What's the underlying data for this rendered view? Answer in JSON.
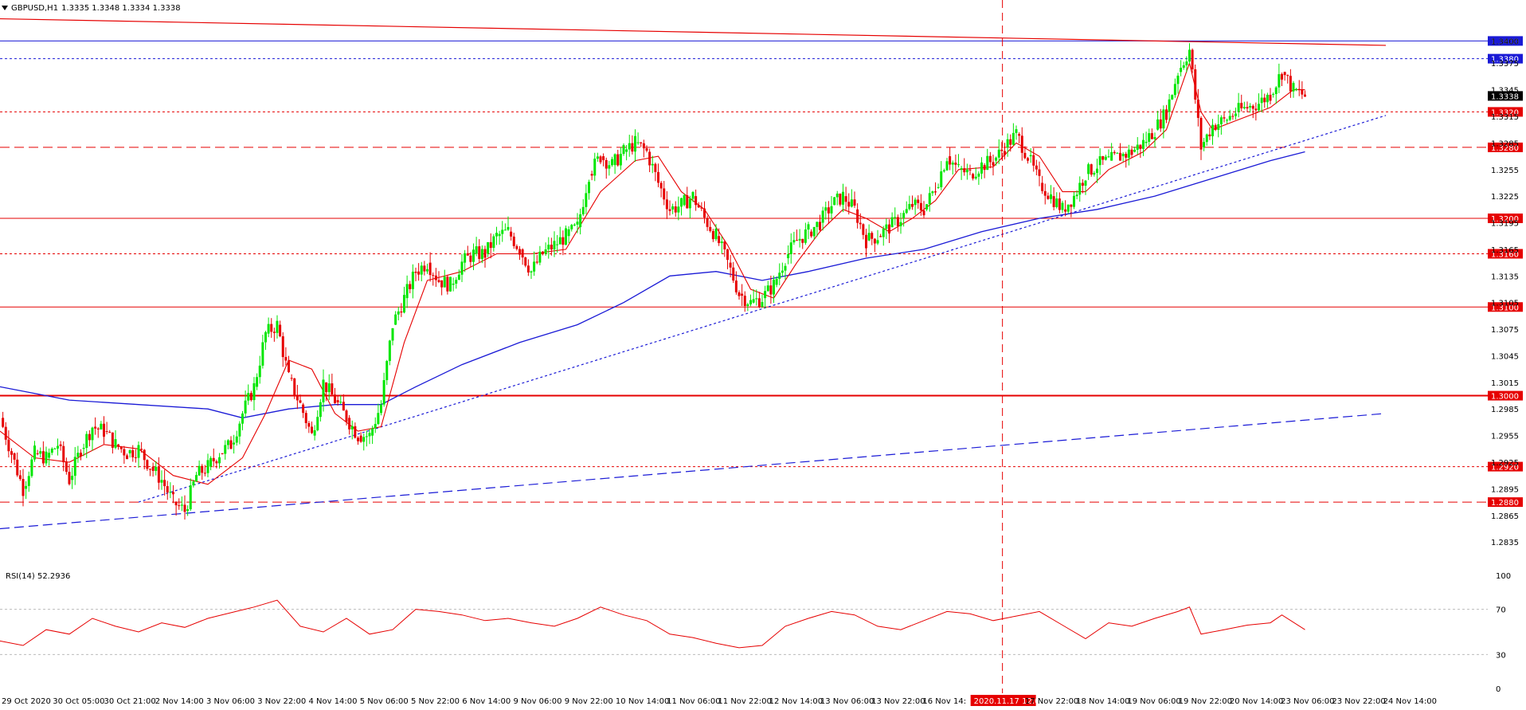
{
  "header": {
    "symbol_tf": "GBPUSD,H1",
    "ohlc": "1.3335 1.3348 1.3334 1.3338"
  },
  "rsi": {
    "label": "RSI(14) 52.2936"
  },
  "colors": {
    "bull": "#00e600",
    "bear": "#e60000",
    "ma_fast": "#e60000",
    "ma_slow": "#1a1ad6",
    "level_red": "#e60000",
    "level_blue": "#1a1ad6",
    "rsi": "#e60000",
    "axis": "#000000"
  },
  "icons": [
    "dropdown-triangle-icon"
  ],
  "chart_data": [
    {
      "type": "candlestick",
      "title": "GBPUSD,H1",
      "ylim": [
        1.281,
        1.343
      ],
      "yticks": [
        "1.3400",
        "1.3375",
        "1.3345",
        "1.3315",
        "1.3285",
        "1.3255",
        "1.3225",
        "1.3195",
        "1.3165",
        "1.3135",
        "1.3105",
        "1.3075",
        "1.3045",
        "1.3015",
        "1.2985",
        "1.2955",
        "1.2925",
        "1.2895",
        "1.2865",
        "1.2835"
      ],
      "xticks": [
        "29 Oct 2020",
        "30 Oct 05:00",
        "30 Oct 21:00",
        "2 Nov 14:00",
        "3 Nov 06:00",
        "3 Nov 22:00",
        "4 Nov 14:00",
        "5 Nov 06:00",
        "5 Nov 22:00",
        "6 Nov 14:00",
        "9 Nov 06:00",
        "9 Nov 22:00",
        "10 Nov 14:00",
        "11 Nov 06:00",
        "11 Nov 22:00",
        "12 Nov 14:00",
        "13 Nov 06:00",
        "13 Nov 22:00",
        "16 Nov 14:",
        "2020.11.17 12:00",
        "17 Nov 22:00",
        "18 Nov 14:00",
        "19 Nov 06:00",
        "19 Nov 22:00",
        "20 Nov 14:00",
        "23 Nov 06:00",
        "23 Nov 22:00",
        "24 Nov 14:00"
      ],
      "crosshair_label": "2020.11.17 12:00",
      "current_price": "1.3338",
      "levels": [
        {
          "value": 1.34,
          "label": "1.3400",
          "color": "#1a1ad6",
          "style": "solid"
        },
        {
          "value": 1.338,
          "label": "1.3380",
          "color": "#1a1ad6",
          "style": "dotted"
        },
        {
          "value": 1.332,
          "label": "1.3320",
          "color": "#e60000",
          "style": "dotted"
        },
        {
          "value": 1.328,
          "label": "1.3280",
          "color": "#e60000",
          "style": "dashed"
        },
        {
          "value": 1.32,
          "label": "1.3200",
          "color": "#e60000",
          "style": "solid"
        },
        {
          "value": 1.316,
          "label": "1.3160",
          "color": "#e60000",
          "style": "dotted"
        },
        {
          "value": 1.31,
          "label": "1.3100",
          "color": "#e60000",
          "style": "solid"
        },
        {
          "value": 1.3,
          "label": "1.3000",
          "color": "#e60000",
          "style": "thick"
        },
        {
          "value": 1.292,
          "label": "1.2920",
          "color": "#e60000",
          "style": "dotted"
        },
        {
          "value": 1.288,
          "label": "1.2880",
          "color": "#e60000",
          "style": "dashed"
        }
      ],
      "close_path": [
        [
          0,
          1.2975
        ],
        [
          1,
          1.2935
        ],
        [
          2,
          1.2895
        ],
        [
          3,
          1.2935
        ],
        [
          4,
          1.293
        ],
        [
          5,
          1.2945
        ],
        [
          6,
          1.2905
        ],
        [
          7,
          1.294
        ],
        [
          8,
          1.2965
        ],
        [
          9,
          1.296
        ],
        [
          10,
          1.2945
        ],
        [
          11,
          1.2935
        ],
        [
          12,
          1.294
        ],
        [
          13,
          1.292
        ],
        [
          14,
          1.2905
        ],
        [
          15,
          1.288
        ],
        [
          16,
          1.287
        ],
        [
          17,
          1.291
        ],
        [
          18,
          1.292
        ],
        [
          19,
          1.2935
        ],
        [
          20,
          1.2945
        ],
        [
          21,
          1.298
        ],
        [
          22,
          1.301
        ],
        [
          23,
          1.307
        ],
        [
          24,
          1.308
        ],
        [
          25,
          1.302
        ],
        [
          26,
          1.299
        ],
        [
          27,
          1.2955
        ],
        [
          28,
          1.3015
        ],
        [
          29,
          1.2995
        ],
        [
          30,
          1.2975
        ],
        [
          31,
          1.2955
        ],
        [
          32,
          1.2955
        ],
        [
          33,
          1.299
        ],
        [
          34,
          1.308
        ],
        [
          35,
          1.311
        ],
        [
          36,
          1.314
        ],
        [
          37,
          1.315
        ],
        [
          38,
          1.313
        ],
        [
          39,
          1.3125
        ],
        [
          40,
          1.315
        ],
        [
          41,
          1.316
        ],
        [
          42,
          1.316
        ],
        [
          43,
          1.318
        ],
        [
          44,
          1.3185
        ],
        [
          45,
          1.3165
        ],
        [
          46,
          1.314
        ],
        [
          47,
          1.316
        ],
        [
          48,
          1.317
        ],
        [
          49,
          1.318
        ],
        [
          50,
          1.319
        ],
        [
          51,
          1.325
        ],
        [
          52,
          1.327
        ],
        [
          53,
          1.326
        ],
        [
          54,
          1.3275
        ],
        [
          55,
          1.3285
        ],
        [
          56,
          1.3275
        ],
        [
          57,
          1.324
        ],
        [
          58,
          1.321
        ],
        [
          59,
          1.3215
        ],
        [
          60,
          1.3225
        ],
        [
          61,
          1.32
        ],
        [
          62,
          1.318
        ],
        [
          63,
          1.315
        ],
        [
          64,
          1.3115
        ],
        [
          65,
          1.3105
        ],
        [
          66,
          1.311
        ],
        [
          67,
          1.3125
        ],
        [
          68,
          1.3155
        ],
        [
          69,
          1.3175
        ],
        [
          70,
          1.3185
        ],
        [
          71,
          1.3195
        ],
        [
          72,
          1.3215
        ],
        [
          73,
          1.3225
        ],
        [
          74,
          1.321
        ],
        [
          75,
          1.3175
        ],
        [
          76,
          1.318
        ],
        [
          77,
          1.319
        ],
        [
          78,
          1.32
        ],
        [
          79,
          1.3215
        ],
        [
          80,
          1.321
        ],
        [
          81,
          1.3235
        ],
        [
          82,
          1.327
        ],
        [
          83,
          1.3255
        ],
        [
          84,
          1.325
        ],
        [
          85,
          1.326
        ],
        [
          86,
          1.3265
        ],
        [
          87,
          1.328
        ],
        [
          88,
          1.3295
        ],
        [
          89,
          1.327
        ],
        [
          90,
          1.324
        ],
        [
          91,
          1.3225
        ],
        [
          92,
          1.321
        ],
        [
          93,
          1.3225
        ],
        [
          94,
          1.325
        ],
        [
          95,
          1.326
        ],
        [
          96,
          1.3265
        ],
        [
          97,
          1.327
        ],
        [
          98,
          1.3275
        ],
        [
          99,
          1.3285
        ],
        [
          100,
          1.33
        ],
        [
          101,
          1.332
        ],
        [
          102,
          1.3365
        ],
        [
          103,
          1.339
        ],
        [
          104,
          1.328
        ],
        [
          105,
          1.3305
        ],
        [
          106,
          1.331
        ],
        [
          107,
          1.332
        ],
        [
          108,
          1.3325
        ],
        [
          109,
          1.333
        ],
        [
          110,
          1.334
        ],
        [
          111,
          1.3365
        ],
        [
          112,
          1.3345
        ],
        [
          113,
          1.3338
        ]
      ],
      "ma_fast": [
        [
          0,
          1.296
        ],
        [
          3,
          1.293
        ],
        [
          6,
          1.2925
        ],
        [
          9,
          1.2945
        ],
        [
          12,
          1.294
        ],
        [
          15,
          1.291
        ],
        [
          18,
          1.29
        ],
        [
          21,
          1.293
        ],
        [
          23,
          1.298
        ],
        [
          25,
          1.304
        ],
        [
          27,
          1.303
        ],
        [
          29,
          1.298
        ],
        [
          31,
          1.296
        ],
        [
          33,
          1.2965
        ],
        [
          35,
          1.306
        ],
        [
          37,
          1.313
        ],
        [
          40,
          1.314
        ],
        [
          43,
          1.316
        ],
        [
          46,
          1.316
        ],
        [
          49,
          1.3165
        ],
        [
          52,
          1.323
        ],
        [
          55,
          1.3265
        ],
        [
          57,
          1.327
        ],
        [
          59,
          1.323
        ],
        [
          61,
          1.321
        ],
        [
          63,
          1.317
        ],
        [
          65,
          1.312
        ],
        [
          67,
          1.311
        ],
        [
          69,
          1.315
        ],
        [
          71,
          1.3185
        ],
        [
          73,
          1.321
        ],
        [
          75,
          1.32
        ],
        [
          77,
          1.3185
        ],
        [
          79,
          1.32
        ],
        [
          81,
          1.322
        ],
        [
          83,
          1.3255
        ],
        [
          86,
          1.3258
        ],
        [
          88,
          1.3285
        ],
        [
          90,
          1.327
        ],
        [
          92,
          1.323
        ],
        [
          94,
          1.323
        ],
        [
          96,
          1.3255
        ],
        [
          99,
          1.3275
        ],
        [
          101,
          1.33
        ],
        [
          103,
          1.3375
        ],
        [
          104,
          1.332
        ],
        [
          105,
          1.33
        ],
        [
          107,
          1.331
        ],
        [
          110,
          1.3325
        ],
        [
          112,
          1.3345
        ],
        [
          113,
          1.3345
        ]
      ],
      "ma_slow": [
        [
          0,
          1.301
        ],
        [
          6,
          1.2995
        ],
        [
          12,
          1.299
        ],
        [
          18,
          1.2985
        ],
        [
          21,
          1.2975
        ],
        [
          25,
          1.2985
        ],
        [
          29,
          1.299
        ],
        [
          33,
          1.299
        ],
        [
          36,
          1.301
        ],
        [
          40,
          1.3035
        ],
        [
          45,
          1.306
        ],
        [
          50,
          1.308
        ],
        [
          54,
          1.3105
        ],
        [
          58,
          1.3135
        ],
        [
          62,
          1.314
        ],
        [
          66,
          1.313
        ],
        [
          70,
          1.314
        ],
        [
          75,
          1.3155
        ],
        [
          80,
          1.3165
        ],
        [
          85,
          1.3185
        ],
        [
          90,
          1.32
        ],
        [
          95,
          1.321
        ],
        [
          100,
          1.3225
        ],
        [
          105,
          1.3245
        ],
        [
          110,
          1.3265
        ],
        [
          113,
          1.3275
        ]
      ],
      "trendlines": [
        {
          "from": [
            12,
            1.288
          ],
          "to": [
            120,
            1.3316
          ],
          "color": "#1a1ad6",
          "style": "dotted"
        },
        {
          "from": [
            0,
            1.285
          ],
          "to": [
            120,
            1.298
          ],
          "color": "#1a1ad6",
          "style": "dashed"
        },
        {
          "from": [
            0,
            1.3425
          ],
          "to": [
            120,
            1.3395
          ],
          "color": "#e60000",
          "style": "solid"
        }
      ],
      "xlim": [
        0,
        120
      ]
    },
    {
      "type": "line",
      "title": "RSI(14) 52.2936",
      "ylim": [
        0,
        100
      ],
      "yticks": [
        "100",
        "70",
        "30",
        "0"
      ],
      "levels": [
        70,
        30
      ],
      "x": [
        0,
        2,
        4,
        6,
        8,
        10,
        12,
        14,
        16,
        18,
        20,
        22,
        24,
        26,
        28,
        30,
        32,
        34,
        36,
        38,
        40,
        42,
        44,
        46,
        48,
        50,
        52,
        54,
        56,
        58,
        60,
        62,
        64,
        66,
        68,
        70,
        72,
        74,
        76,
        78,
        80,
        82,
        84,
        86,
        88,
        90,
        92,
        94,
        96,
        98,
        100,
        102,
        103,
        104,
        106,
        108,
        110,
        111,
        113
      ],
      "values": [
        42,
        38,
        52,
        48,
        62,
        55,
        50,
        58,
        54,
        62,
        67,
        72,
        78,
        55,
        50,
        62,
        48,
        52,
        70,
        68,
        65,
        60,
        62,
        58,
        55,
        62,
        72,
        65,
        60,
        48,
        45,
        40,
        36,
        38,
        55,
        62,
        68,
        65,
        55,
        52,
        60,
        68,
        66,
        60,
        64,
        68,
        56,
        44,
        58,
        55,
        62,
        68,
        72,
        48,
        52,
        56,
        58,
        65,
        52
      ]
    }
  ]
}
